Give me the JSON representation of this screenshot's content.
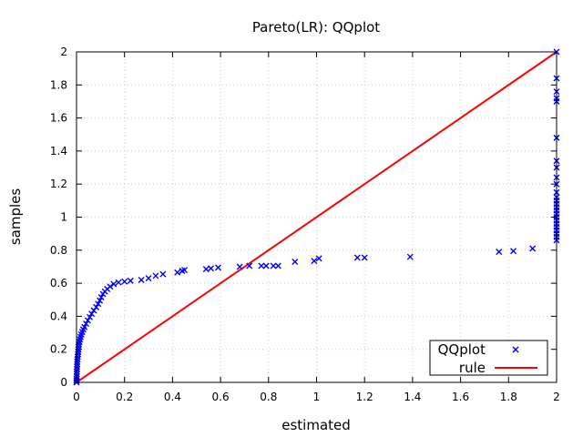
{
  "chart_data": {
    "type": "scatter",
    "title": "Pareto(LR): QQplot",
    "xlabel": "estimated",
    "ylabel": "samples",
    "xlim": [
      0,
      2
    ],
    "ylim": [
      0,
      2
    ],
    "xticks": [
      "0",
      "0.2",
      "0.4",
      "0.6",
      "0.8",
      "1",
      "1.2",
      "1.4",
      "1.6",
      "1.8",
      "2"
    ],
    "yticks": [
      "0",
      "0.2",
      "0.4",
      "0.6",
      "0.8",
      "1",
      "1.2",
      "1.4",
      "1.6",
      "1.8",
      "2"
    ],
    "grid": true,
    "legend_position": "bottom-right",
    "colors": {
      "qqplot": "#0000ff",
      "rule": "#ff0000"
    },
    "series": [
      {
        "name": "QQplot",
        "marker": "x",
        "points": [
          [
            0.0,
            0.0
          ],
          [
            0.0,
            0.01
          ],
          [
            0.0,
            0.02
          ],
          [
            0.001,
            0.035
          ],
          [
            0.001,
            0.05
          ],
          [
            0.001,
            0.065
          ],
          [
            0.002,
            0.08
          ],
          [
            0.002,
            0.095
          ],
          [
            0.003,
            0.11
          ],
          [
            0.003,
            0.125
          ],
          [
            0.004,
            0.14
          ],
          [
            0.005,
            0.155
          ],
          [
            0.006,
            0.17
          ],
          [
            0.007,
            0.185
          ],
          [
            0.008,
            0.2
          ],
          [
            0.009,
            0.215
          ],
          [
            0.01,
            0.23
          ],
          [
            0.012,
            0.245
          ],
          [
            0.014,
            0.26
          ],
          [
            0.017,
            0.275
          ],
          [
            0.02,
            0.29
          ],
          [
            0.024,
            0.305
          ],
          [
            0.028,
            0.32
          ],
          [
            0.033,
            0.335
          ],
          [
            0.04,
            0.355
          ],
          [
            0.047,
            0.375
          ],
          [
            0.055,
            0.395
          ],
          [
            0.063,
            0.415
          ],
          [
            0.072,
            0.435
          ],
          [
            0.082,
            0.455
          ],
          [
            0.09,
            0.475
          ],
          [
            0.097,
            0.495
          ],
          [
            0.103,
            0.515
          ],
          [
            0.11,
            0.535
          ],
          [
            0.118,
            0.55
          ],
          [
            0.128,
            0.565
          ],
          [
            0.14,
            0.58
          ],
          [
            0.155,
            0.595
          ],
          [
            0.175,
            0.605
          ],
          [
            0.2,
            0.61
          ],
          [
            0.225,
            0.615
          ],
          [
            0.27,
            0.62
          ],
          [
            0.3,
            0.63
          ],
          [
            0.33,
            0.645
          ],
          [
            0.36,
            0.655
          ],
          [
            0.42,
            0.665
          ],
          [
            0.44,
            0.675
          ],
          [
            0.45,
            0.68
          ],
          [
            0.54,
            0.685
          ],
          [
            0.56,
            0.69
          ],
          [
            0.59,
            0.695
          ],
          [
            0.68,
            0.7
          ],
          [
            0.72,
            0.705
          ],
          [
            0.77,
            0.705
          ],
          [
            0.79,
            0.705
          ],
          [
            0.82,
            0.705
          ],
          [
            0.84,
            0.705
          ],
          [
            0.91,
            0.73
          ],
          [
            0.99,
            0.735
          ],
          [
            1.01,
            0.75
          ],
          [
            1.17,
            0.755
          ],
          [
            1.2,
            0.755
          ],
          [
            1.39,
            0.76
          ],
          [
            1.76,
            0.79
          ],
          [
            1.82,
            0.795
          ],
          [
            1.9,
            0.81
          ],
          [
            2.0,
            0.86
          ],
          [
            2.0,
            0.88
          ],
          [
            2.0,
            0.9
          ],
          [
            2.0,
            0.92
          ],
          [
            2.0,
            0.94
          ],
          [
            2.0,
            0.96
          ],
          [
            2.0,
            0.98
          ],
          [
            2.0,
            1.0
          ],
          [
            2.0,
            1.02
          ],
          [
            2.0,
            1.04
          ],
          [
            2.0,
            1.06
          ],
          [
            2.0,
            1.08
          ],
          [
            2.0,
            1.1
          ],
          [
            2.0,
            1.12
          ],
          [
            2.0,
            1.15
          ],
          [
            2.0,
            1.2
          ],
          [
            2.0,
            1.24
          ],
          [
            2.0,
            1.3
          ],
          [
            2.0,
            1.34
          ],
          [
            2.0,
            1.48
          ],
          [
            2.0,
            1.7
          ],
          [
            2.0,
            1.72
          ],
          [
            2.0,
            1.76
          ],
          [
            2.0,
            1.84
          ],
          [
            2.0,
            2.0
          ]
        ]
      },
      {
        "name": "rule",
        "marker": "line",
        "points": [
          [
            0,
            0
          ],
          [
            2,
            2
          ]
        ]
      }
    ]
  }
}
